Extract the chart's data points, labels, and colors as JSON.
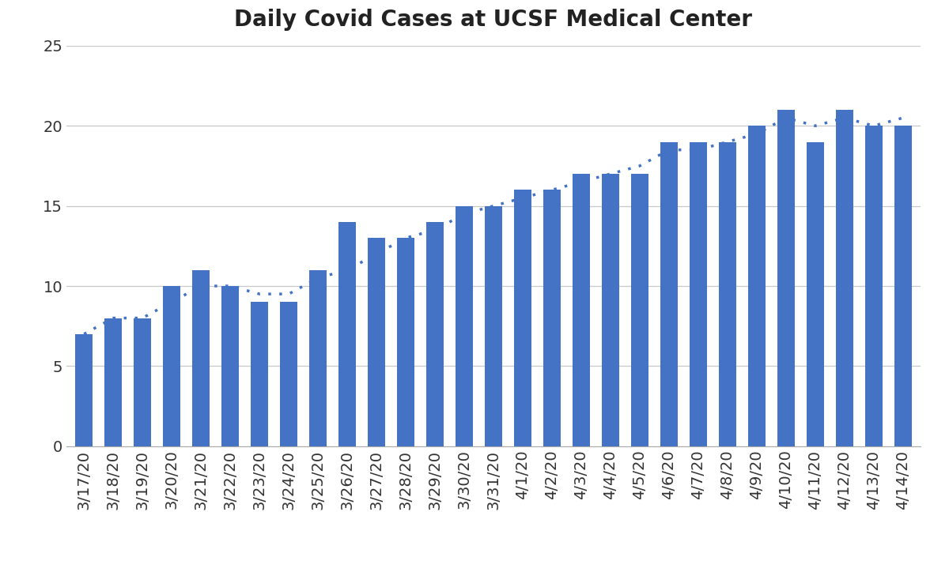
{
  "title": "Daily Covid Cases at UCSF Medical Center",
  "categories": [
    "3/17/20",
    "3/18/20",
    "3/19/20",
    "3/20/20",
    "3/21/20",
    "3/22/20",
    "3/23/20",
    "3/24/20",
    "3/25/20",
    "3/26/20",
    "3/27/20",
    "3/28/20",
    "3/29/20",
    "3/30/20",
    "3/31/20",
    "4/1/20",
    "4/2/20",
    "4/3/20",
    "4/4/20",
    "4/5/20",
    "4/6/20",
    "4/7/20",
    "4/8/20",
    "4/9/20",
    "4/10/20",
    "4/11/20",
    "4/12/20",
    "4/13/20",
    "4/14/20"
  ],
  "values": [
    7,
    8,
    8,
    10,
    11,
    10,
    9,
    9,
    11,
    14,
    13,
    13,
    14,
    15,
    15,
    16,
    16,
    17,
    17,
    17,
    19,
    19,
    19,
    20,
    21,
    19,
    21,
    20,
    20
  ],
  "trendline": [
    7,
    8,
    8,
    9,
    10,
    10,
    9.5,
    9.5,
    10.5,
    11,
    12,
    13,
    13.5,
    14.5,
    15,
    15.5,
    16,
    16.5,
    17,
    17.5,
    18.5,
    18.5,
    19,
    19.5,
    20.5,
    20,
    20.5,
    20,
    20.5
  ],
  "bar_color": "#4472C4",
  "trend_color": "#4472C4",
  "background_color": "#FFFFFF",
  "ylim": [
    0,
    25
  ],
  "yticks": [
    0,
    5,
    10,
    15,
    20,
    25
  ],
  "title_fontsize": 20,
  "tick_fontsize": 14,
  "grid_color": "#C8C8C8"
}
